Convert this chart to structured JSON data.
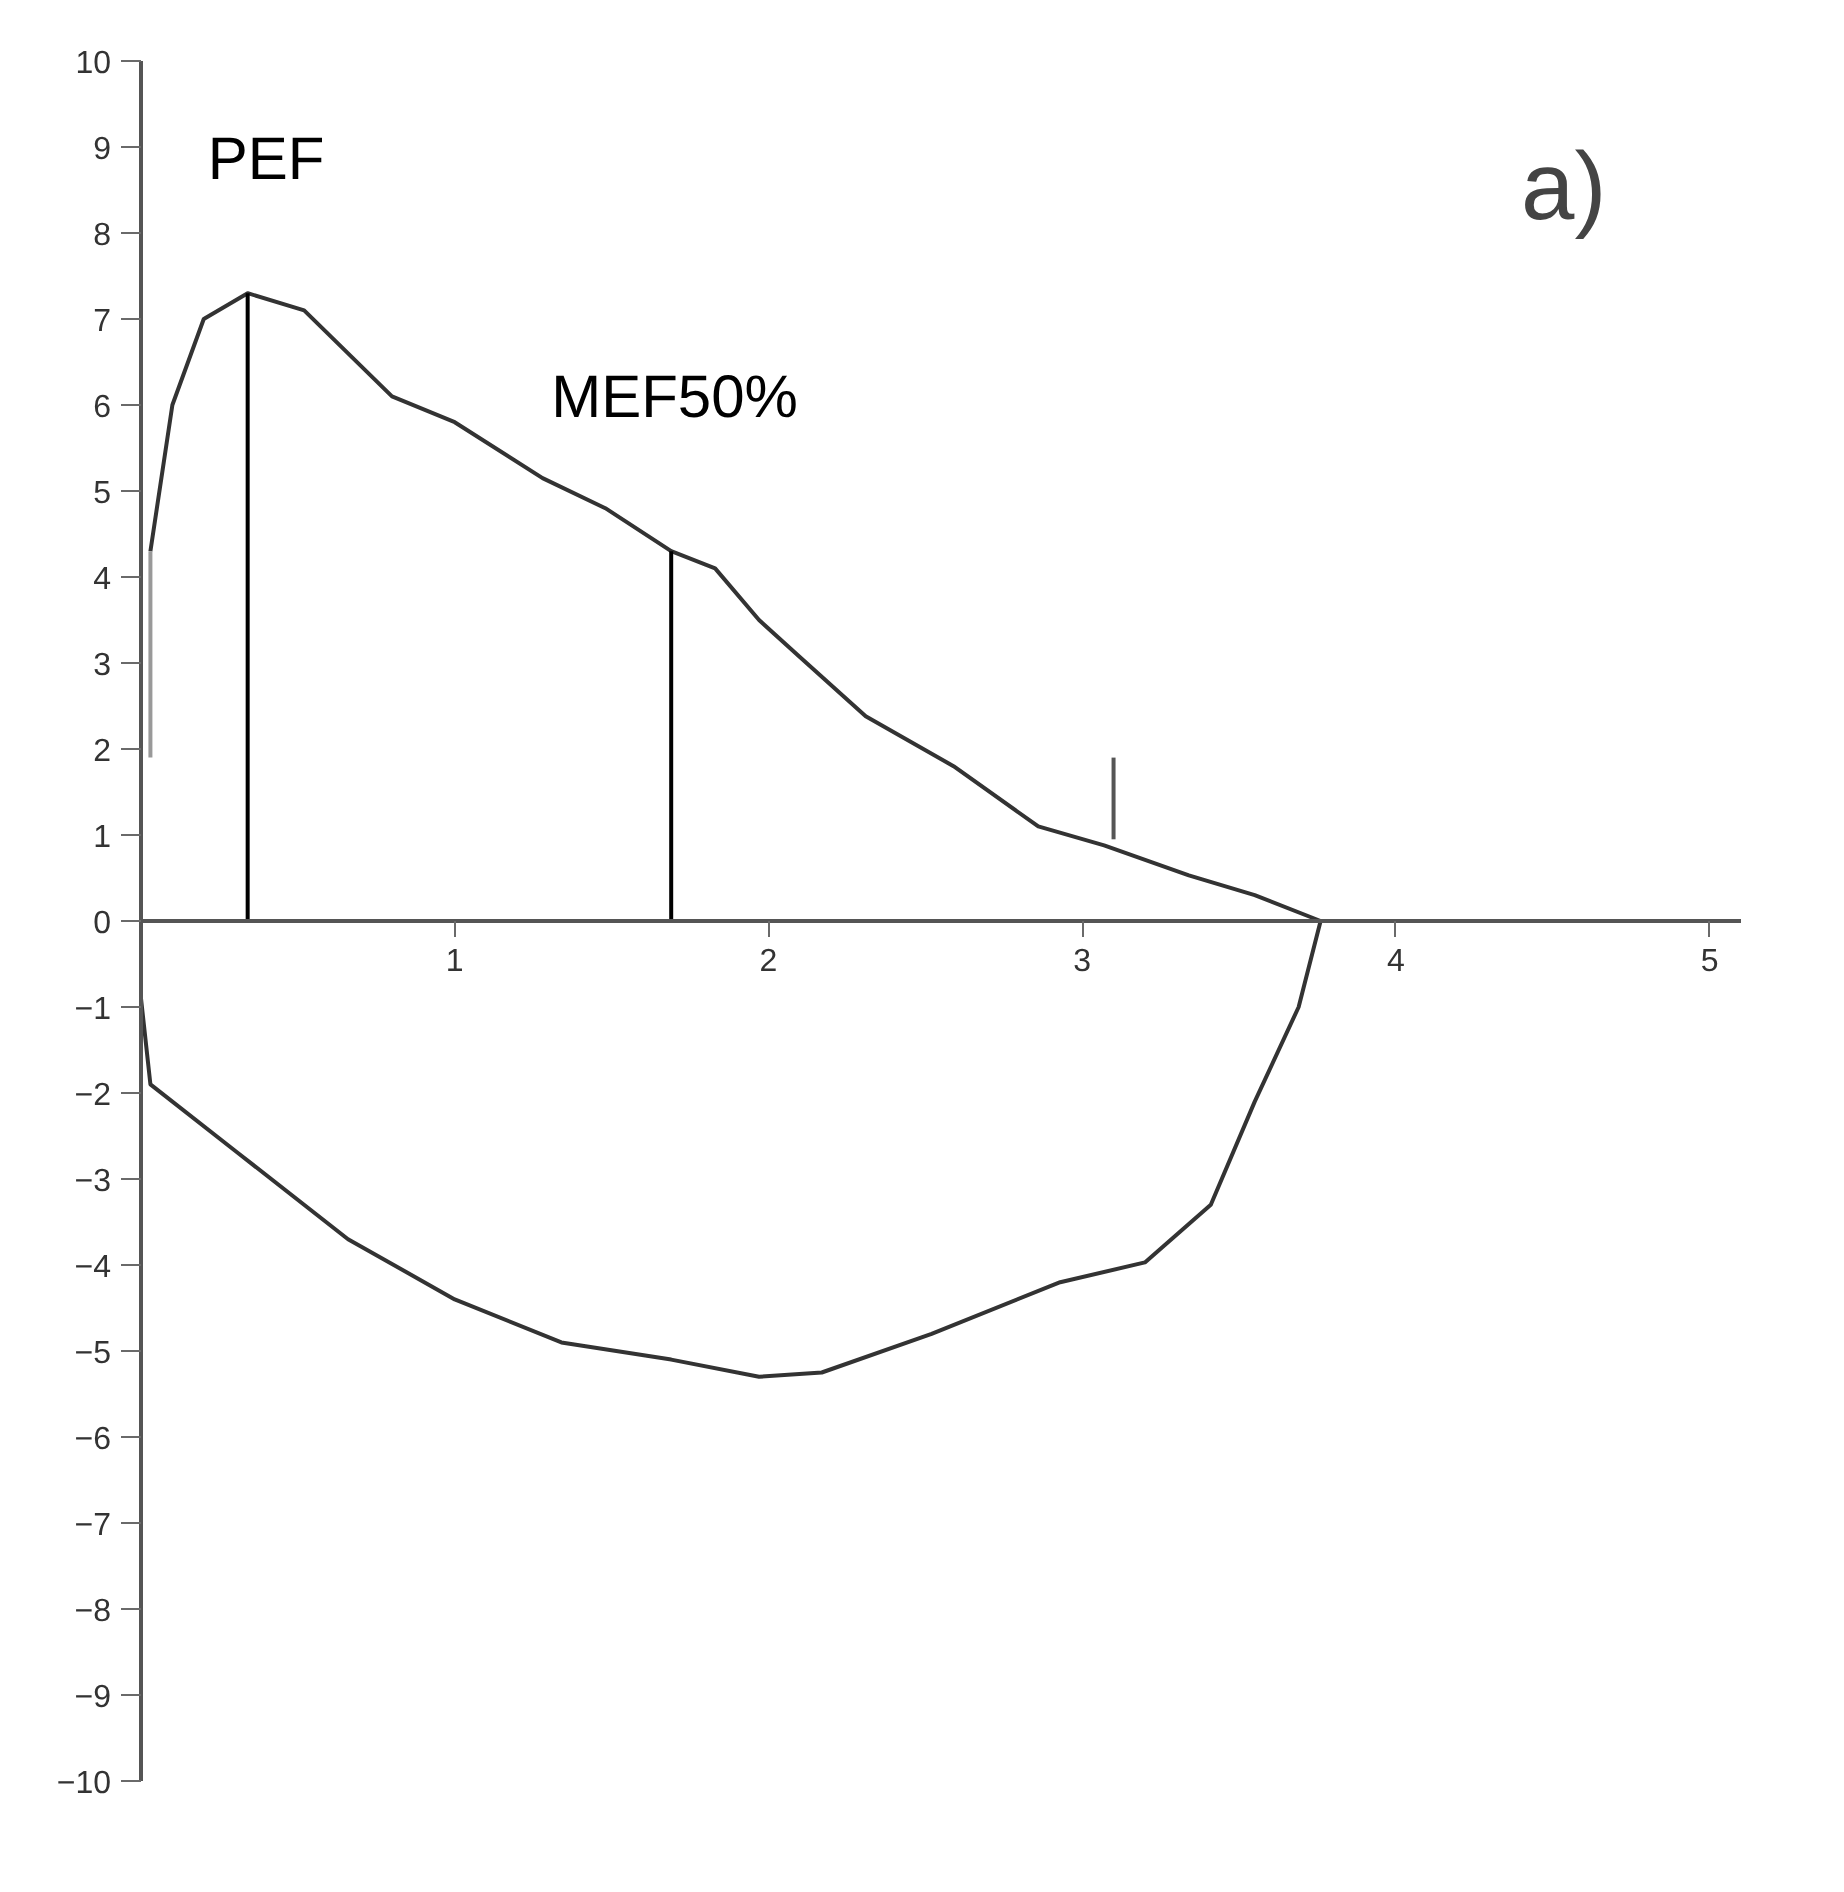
{
  "chart_data": {
    "type": "line",
    "annotations": [
      "a)",
      {
        "text": "PEF",
        "x": 0.34,
        "y": 7.3
      },
      {
        "text": "MEF50%",
        "x": 1.69,
        "y": 4.3
      }
    ],
    "series": [
      {
        "color": "#333333",
        "x": [
          0.03,
          0.1,
          0.2,
          0.34,
          0.52,
          0.8,
          1.0,
          1.28,
          1.48,
          1.69,
          1.83,
          1.97,
          2.1,
          2.31,
          2.59,
          2.86,
          3.07,
          3.34,
          3.55,
          3.76
        ],
        "values": [
          4.3,
          6.0,
          7.0,
          7.3,
          7.1,
          6.1,
          5.8,
          5.15,
          4.8,
          4.3,
          4.1,
          3.5,
          3.07,
          2.38,
          1.8,
          1.1,
          0.88,
          0.53,
          0.3,
          0
        ]
      },
      {
        "color": "#333333",
        "x": [
          0,
          0.03,
          0.31,
          0.66,
          1.0,
          1.34,
          1.69,
          1.97,
          2.17,
          2.52,
          2.93,
          3.2,
          3.41,
          3.55,
          3.69,
          3.76
        ],
        "values": [
          -0.9,
          -1.9,
          -2.7,
          -3.7,
          -4.4,
          -4.9,
          -5.1,
          -5.3,
          -5.25,
          -4.8,
          -4.2,
          -3.97,
          -3.3,
          -2.1,
          -1.0,
          0
        ]
      },
      {
        "color": "#000000",
        "x": [
          0.34,
          0.34
        ],
        "values": [
          0,
          7.3
        ]
      },
      {
        "color": "#000000",
        "x": [
          1.69,
          1.69
        ],
        "values": [
          0,
          4.3
        ]
      },
      {
        "color": "#555555",
        "x": [
          3.1,
          3.1
        ],
        "values": [
          0.95,
          1.9
        ]
      },
      {
        "color": "#999999",
        "x": [
          0.03,
          0.03
        ],
        "values": [
          1.9,
          4.3
        ]
      }
    ],
    "xlim": [
      0,
      5.1
    ],
    "xticks": [
      1,
      2,
      3,
      4,
      5
    ],
    "ylim": [
      -10,
      10
    ],
    "yticks": [
      -10,
      -9,
      -8,
      -7,
      -6,
      -5,
      -4,
      -3,
      -2,
      -1,
      0,
      1,
      2,
      3,
      4,
      5,
      6,
      7,
      8,
      9,
      10
    ],
    "grid": false,
    "marker": "none",
    "line_style": "solid"
  }
}
